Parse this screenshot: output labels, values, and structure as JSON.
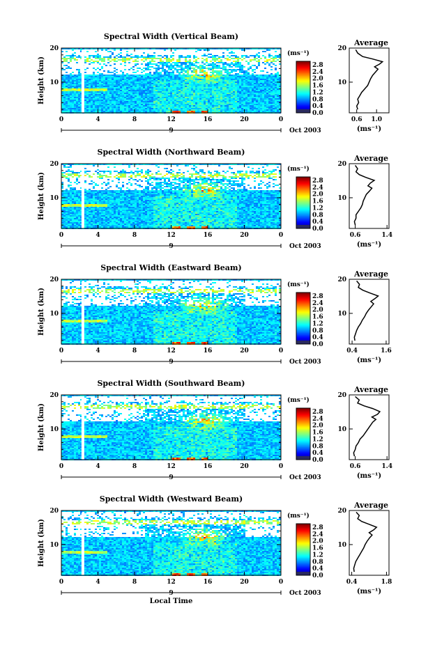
{
  "chart_data": [
    {
      "type": "heatmap",
      "title": "Spectral Width (Vertical Beam)",
      "ylabel": "Height (km)",
      "ylim": [
        1,
        20
      ],
      "xlim": [
        0,
        24
      ],
      "x_ticks": [
        "0",
        "4",
        "8",
        "12",
        "16",
        "20",
        "0"
      ],
      "y_ticks": [
        "10",
        "20"
      ],
      "date_marker": "9",
      "date_label": "Oct 2003",
      "colorbar": {
        "unit": "(ms⁻¹)",
        "ticks": [
          "0.0",
          "0.4",
          "0.8",
          "1.2",
          "1.6",
          "2.0",
          "2.4",
          "2.8"
        ],
        "range": [
          0,
          3.0
        ]
      },
      "average": {
        "title": "Average",
        "xlabel": "(ms⁻¹)",
        "x_ticks": [
          "0.6",
          "1.0"
        ],
        "xlim": [
          0.45,
          1.25
        ],
        "profile": [
          [
            0.62,
            2
          ],
          [
            0.6,
            3
          ],
          [
            0.64,
            4
          ],
          [
            0.62,
            5
          ],
          [
            0.66,
            6
          ],
          [
            0.7,
            7
          ],
          [
            0.76,
            8
          ],
          [
            0.82,
            9
          ],
          [
            0.85,
            10
          ],
          [
            0.88,
            11
          ],
          [
            0.92,
            12
          ],
          [
            0.98,
            13
          ],
          [
            1.03,
            13.8
          ],
          [
            0.96,
            14.5
          ],
          [
            1.06,
            15.3
          ],
          [
            1.12,
            16
          ],
          [
            0.92,
            16.8
          ],
          [
            0.72,
            17.5
          ],
          [
            0.62,
            18.5
          ],
          [
            0.58,
            19.5
          ]
        ]
      }
    },
    {
      "type": "heatmap",
      "title": "Spectral Width (Northward Beam)",
      "ylabel": "Height (km)",
      "ylim": [
        1,
        20
      ],
      "xlim": [
        0,
        24
      ],
      "x_ticks": [
        "0",
        "4",
        "8",
        "12",
        "16",
        "20",
        "0"
      ],
      "y_ticks": [
        "10",
        "20"
      ],
      "date_marker": "9",
      "date_label": "Oct 2003",
      "colorbar": {
        "unit": "(ms⁻¹)",
        "ticks": [
          "0.0",
          "0.4",
          "0.8",
          "1.2",
          "1.6",
          "2.0",
          "2.4",
          "2.8"
        ],
        "range": [
          0,
          3.0
        ]
      },
      "average": {
        "title": "Average",
        "xlabel": "(ms⁻¹)",
        "x_ticks": [
          "0.6",
          "1.4"
        ],
        "xlim": [
          0.45,
          1.45
        ],
        "profile": [
          [
            0.6,
            2
          ],
          [
            0.58,
            3
          ],
          [
            0.62,
            4
          ],
          [
            0.62,
            5
          ],
          [
            0.68,
            6
          ],
          [
            0.74,
            7
          ],
          [
            0.78,
            8
          ],
          [
            0.8,
            9
          ],
          [
            0.84,
            10
          ],
          [
            0.88,
            11
          ],
          [
            0.96,
            12
          ],
          [
            1.02,
            12.8
          ],
          [
            0.92,
            13.5
          ],
          [
            0.98,
            14.3
          ],
          [
            1.08,
            15.1
          ],
          [
            0.86,
            16
          ],
          [
            0.7,
            16.8
          ],
          [
            0.62,
            17.6
          ],
          [
            0.66,
            18.5
          ],
          [
            0.6,
            19.5
          ]
        ]
      }
    },
    {
      "type": "heatmap",
      "title": "Spectral Width (Eastward Beam)",
      "ylabel": "Height (km)",
      "ylim": [
        1,
        20
      ],
      "xlim": [
        0,
        24
      ],
      "x_ticks": [
        "0",
        "4",
        "8",
        "12",
        "16",
        "20",
        "0"
      ],
      "y_ticks": [
        "10",
        "20"
      ],
      "date_marker": "9",
      "date_label": "Oct 2003",
      "colorbar": {
        "unit": "(ms⁻¹)",
        "ticks": [
          "0.0",
          "0.4",
          "0.8",
          "1.2",
          "1.6",
          "2.0",
          "2.4",
          "2.8"
        ],
        "range": [
          0,
          3.0
        ]
      },
      "average": {
        "title": "Average",
        "xlabel": "(ms⁻¹)",
        "x_ticks": [
          "0.4",
          "1.6"
        ],
        "xlim": [
          0.3,
          1.7
        ],
        "profile": [
          [
            0.5,
            2
          ],
          [
            0.48,
            3
          ],
          [
            0.52,
            4
          ],
          [
            0.56,
            5
          ],
          [
            0.62,
            6
          ],
          [
            0.7,
            7
          ],
          [
            0.76,
            8
          ],
          [
            0.84,
            9
          ],
          [
            0.9,
            10
          ],
          [
            0.98,
            11
          ],
          [
            1.08,
            12
          ],
          [
            1.16,
            12.8
          ],
          [
            1.06,
            13.5
          ],
          [
            1.2,
            14.3
          ],
          [
            1.32,
            15.1
          ],
          [
            1.02,
            16
          ],
          [
            0.78,
            16.8
          ],
          [
            0.62,
            17.6
          ],
          [
            0.66,
            18.5
          ],
          [
            0.56,
            19.5
          ]
        ]
      }
    },
    {
      "type": "heatmap",
      "title": "Spectral Width (Southward Beam)",
      "ylabel": "Height (km)",
      "ylim": [
        1,
        20
      ],
      "xlim": [
        0,
        24
      ],
      "x_ticks": [
        "0",
        "4",
        "8",
        "12",
        "16",
        "20",
        "0"
      ],
      "y_ticks": [
        "10",
        "20"
      ],
      "date_marker": "9",
      "date_label": "Oct 2003",
      "colorbar": {
        "unit": "(ms⁻¹)",
        "ticks": [
          "0.0",
          "0.4",
          "0.8",
          "1.2",
          "1.6",
          "2.0",
          "2.4",
          "2.8"
        ],
        "range": [
          0,
          3.0
        ]
      },
      "average": {
        "title": "Average",
        "xlabel": "(ms⁻¹)",
        "x_ticks": [
          "0.6",
          "1.4"
        ],
        "xlim": [
          0.45,
          1.45
        ],
        "profile": [
          [
            0.58,
            2
          ],
          [
            0.56,
            3
          ],
          [
            0.6,
            4
          ],
          [
            0.62,
            5
          ],
          [
            0.68,
            6
          ],
          [
            0.72,
            7
          ],
          [
            0.8,
            8
          ],
          [
            0.86,
            9
          ],
          [
            0.92,
            10
          ],
          [
            0.98,
            11
          ],
          [
            1.04,
            12
          ],
          [
            1.12,
            12.8
          ],
          [
            1.02,
            13.5
          ],
          [
            1.16,
            14.3
          ],
          [
            1.22,
            15.1
          ],
          [
            1.04,
            16
          ],
          [
            0.82,
            16.8
          ],
          [
            0.66,
            17.6
          ],
          [
            0.7,
            18.5
          ],
          [
            0.6,
            19.5
          ]
        ]
      }
    },
    {
      "type": "heatmap",
      "title": "Spectral Width (Westward Beam)",
      "ylabel": "Height (km)",
      "xlabel": "Local Time",
      "ylim": [
        1,
        20
      ],
      "xlim": [
        0,
        24
      ],
      "x_ticks": [
        "0",
        "4",
        "8",
        "12",
        "16",
        "20",
        "0"
      ],
      "y_ticks": [
        "10",
        "20"
      ],
      "date_marker": "9",
      "date_label": "Oct 2003",
      "colorbar": {
        "unit": "(ms⁻¹)",
        "ticks": [
          "0.0",
          "0.4",
          "0.8",
          "1.2",
          "1.6",
          "2.0",
          "2.4",
          "2.8"
        ],
        "range": [
          0,
          3.0
        ]
      },
      "average": {
        "title": "Average",
        "xlabel": "(ms⁻¹)",
        "x_ticks": [
          "0.4",
          "1.8"
        ],
        "xlim": [
          0.3,
          1.9
        ],
        "profile": [
          [
            0.5,
            2
          ],
          [
            0.48,
            3
          ],
          [
            0.52,
            4
          ],
          [
            0.56,
            5
          ],
          [
            0.64,
            6
          ],
          [
            0.72,
            7
          ],
          [
            0.8,
            8
          ],
          [
            0.88,
            9
          ],
          [
            0.94,
            10
          ],
          [
            1.02,
            11
          ],
          [
            1.12,
            12
          ],
          [
            1.22,
            12.8
          ],
          [
            1.1,
            13.5
          ],
          [
            1.28,
            14.3
          ],
          [
            1.4,
            15.1
          ],
          [
            1.08,
            16
          ],
          [
            0.8,
            16.8
          ],
          [
            0.64,
            17.6
          ],
          [
            0.7,
            18.5
          ],
          [
            0.58,
            19.5
          ]
        ]
      }
    }
  ]
}
